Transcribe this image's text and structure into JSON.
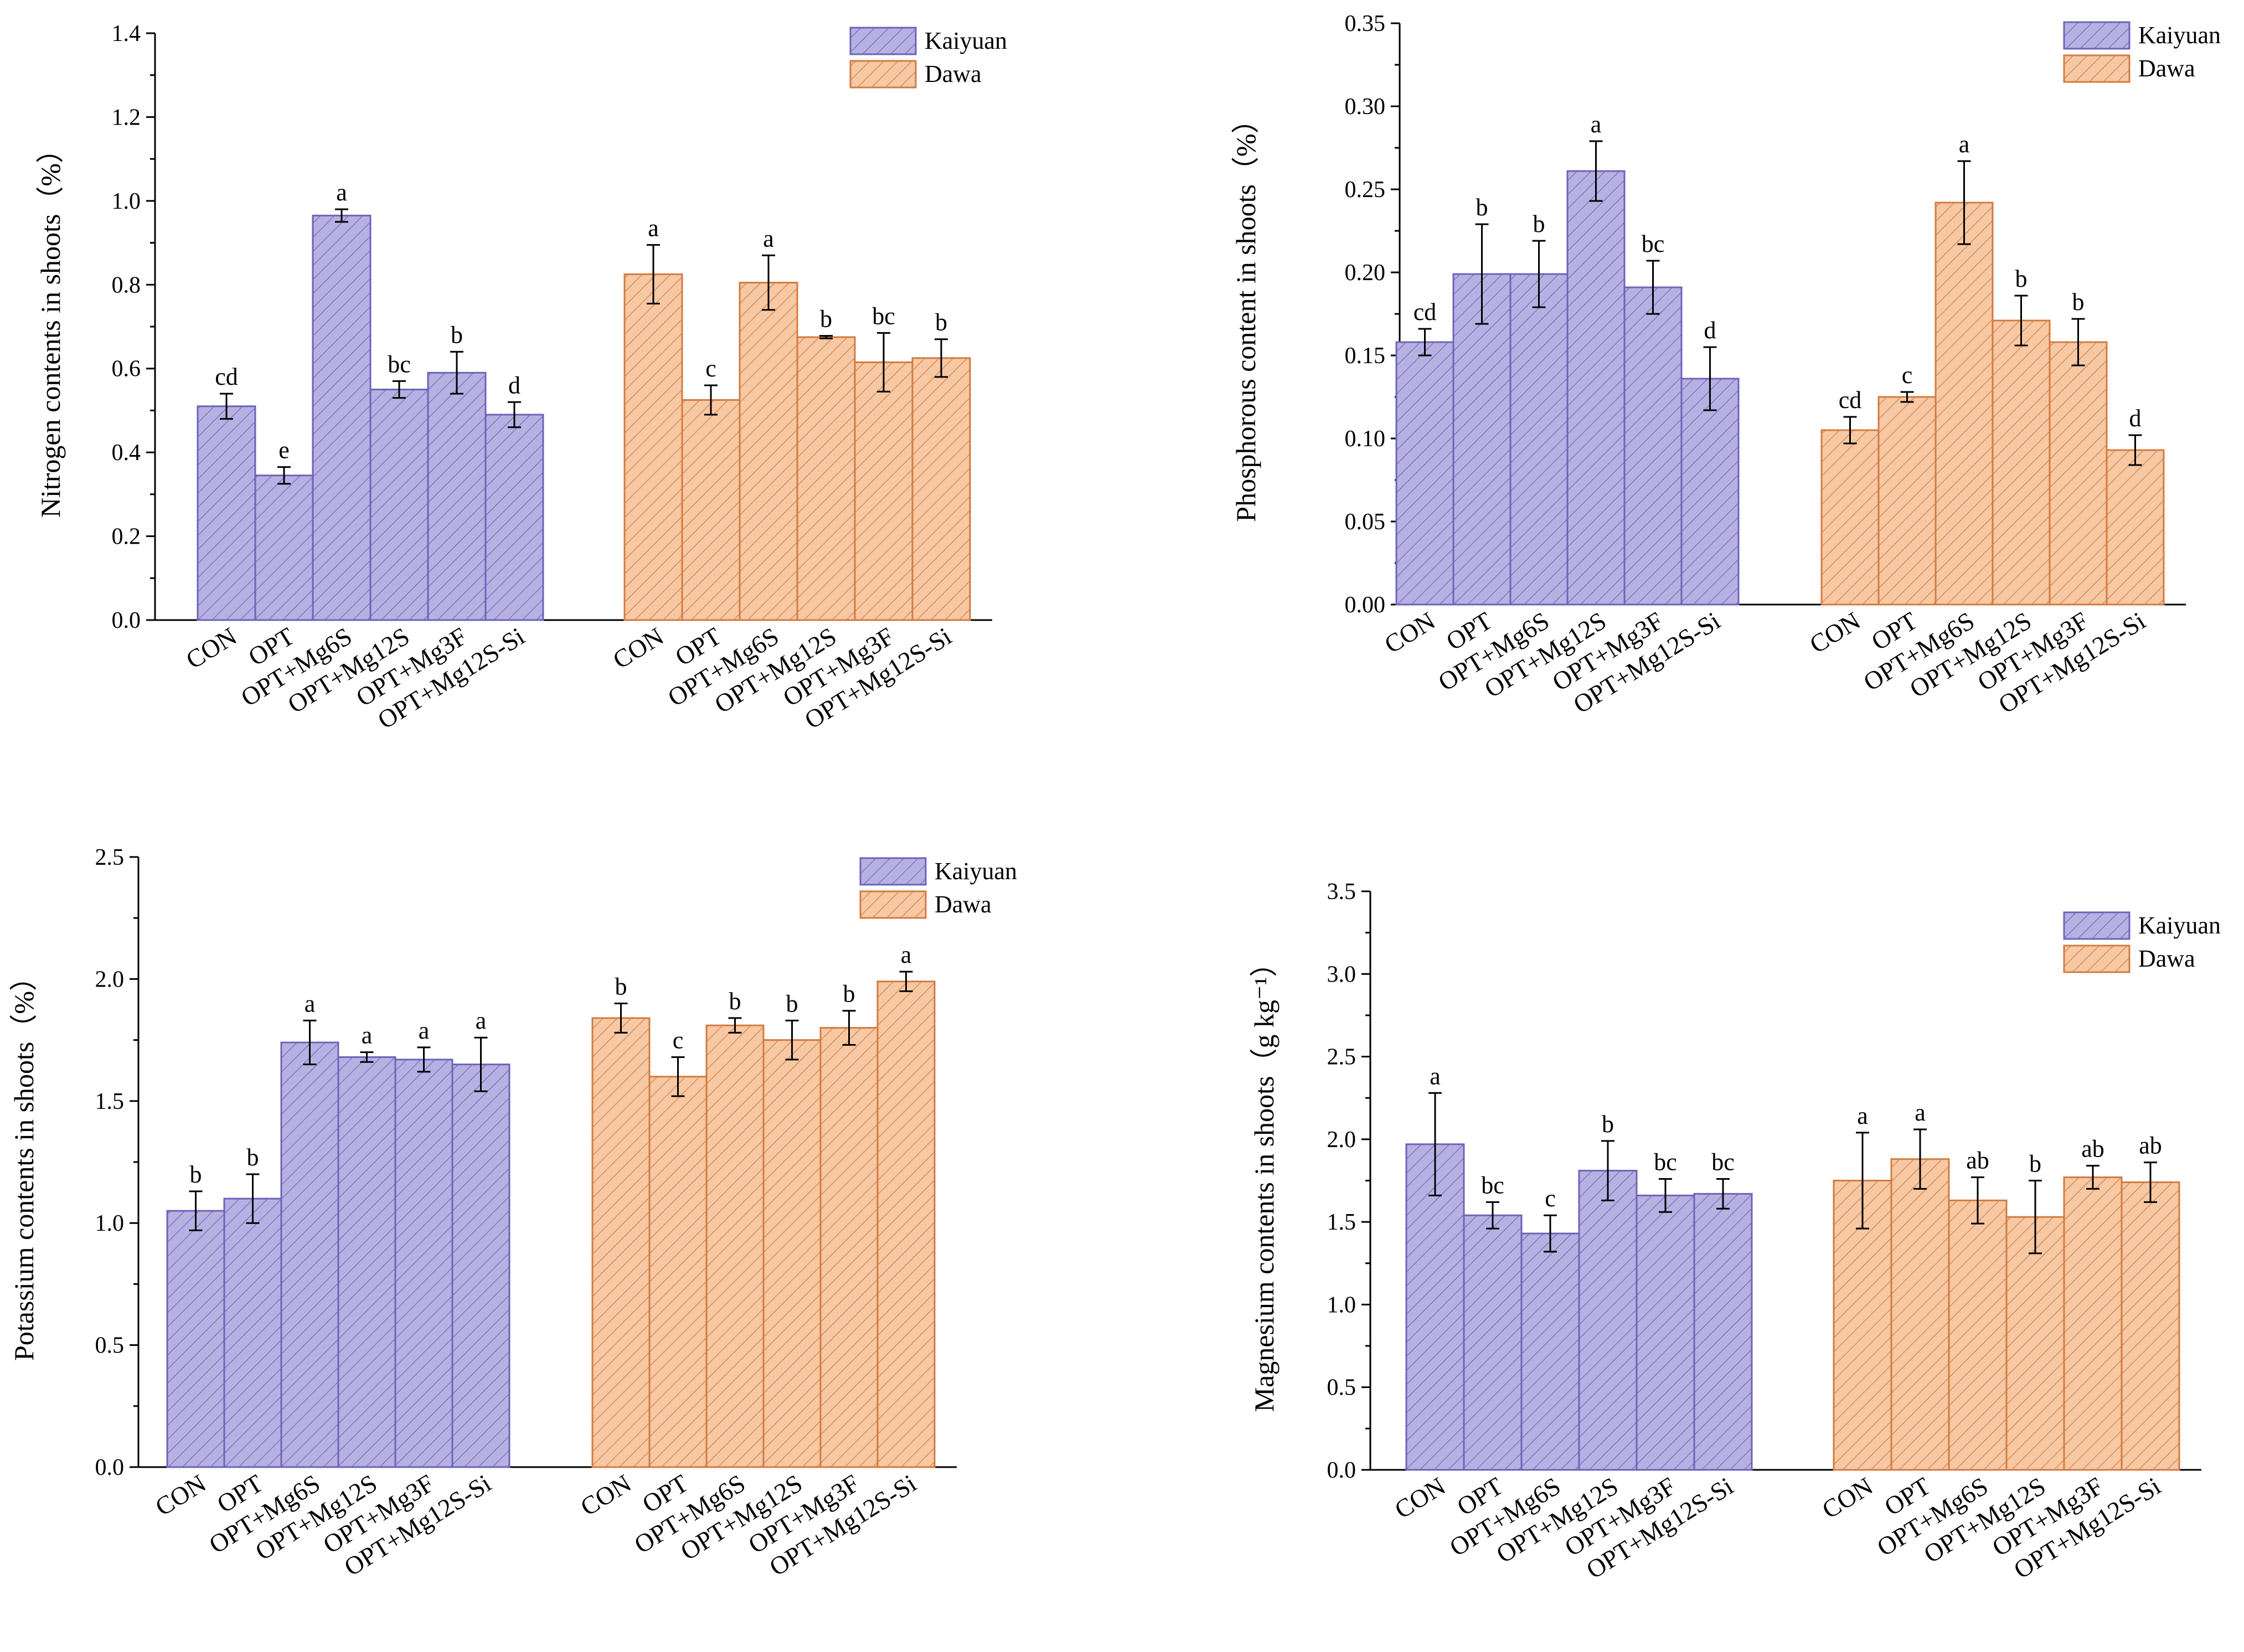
{
  "chart_data": [
    {
      "type": "bar",
      "title": "",
      "xlabel": "",
      "ylabel": "Nitrogen contents in shoots（%）",
      "ylim": [
        0,
        1.4
      ],
      "yticks": [
        "0.0",
        "0.2",
        "0.4",
        "0.6",
        "0.8",
        "1.0",
        "1.2",
        "1.4"
      ],
      "ytick_values": [
        0,
        0.2,
        0.4,
        0.6,
        0.8,
        1.0,
        1.2,
        1.4
      ],
      "grid": false,
      "legend_position": "top-right",
      "categories": [
        "CON",
        "OPT",
        "OPT+Mg6S",
        "OPT+Mg12S",
        "OPT+Mg3F",
        "OPT+Mg12S-Si"
      ],
      "series": [
        {
          "name": "Kaiyuan",
          "color": "#b7b1e2",
          "edge_color": "#6d63b8",
          "values": [
            0.51,
            0.345,
            0.965,
            0.55,
            0.59,
            0.49
          ],
          "errors": [
            0.03,
            0.02,
            0.015,
            0.02,
            0.05,
            0.03
          ],
          "letters": [
            "cd",
            "e",
            "a",
            "bc",
            "b",
            "d"
          ]
        },
        {
          "name": "Dawa",
          "color": "#f6c8a4",
          "edge_color": "#d27b40",
          "values": [
            0.825,
            0.525,
            0.805,
            0.675,
            0.615,
            0.625
          ],
          "errors": [
            0.07,
            0.035,
            0.065,
            0.003,
            0.07,
            0.045
          ],
          "letters": [
            "a",
            "c",
            "a",
            "b",
            "bc",
            "b"
          ]
        }
      ]
    },
    {
      "type": "bar",
      "title": "",
      "xlabel": "",
      "ylabel": "Phosphorous content in shoots（%）",
      "ylim": [
        0,
        0.35
      ],
      "yticks": [
        "0.00",
        "0.05",
        "0.10",
        "0.15",
        "0.20",
        "0.25",
        "0.30",
        "0.35"
      ],
      "ytick_values": [
        0,
        0.05,
        0.1,
        0.15,
        0.2,
        0.25,
        0.3,
        0.35
      ],
      "grid": false,
      "legend_position": "top-right",
      "categories": [
        "CON",
        "OPT",
        "OPT+Mg6S",
        "OPT+Mg12S",
        "OPT+Mg3F",
        "OPT+Mg12S-Si"
      ],
      "series": [
        {
          "name": "Kaiyuan",
          "color": "#b7b1e2",
          "edge_color": "#6d63b8",
          "values": [
            0.158,
            0.199,
            0.199,
            0.261,
            0.191,
            0.136
          ],
          "errors": [
            0.008,
            0.03,
            0.02,
            0.018,
            0.016,
            0.019
          ],
          "letters": [
            "cd",
            "b",
            "b",
            "a",
            "bc",
            "d"
          ]
        },
        {
          "name": "Dawa",
          "color": "#f6c8a4",
          "edge_color": "#d27b40",
          "values": [
            0.105,
            0.125,
            0.242,
            0.171,
            0.158,
            0.093
          ],
          "errors": [
            0.008,
            0.003,
            0.025,
            0.015,
            0.014,
            0.009
          ],
          "letters": [
            "cd",
            "c",
            "a",
            "b",
            "b",
            "d"
          ]
        }
      ]
    },
    {
      "type": "bar",
      "title": "",
      "xlabel": "",
      "ylabel": "Potassium contents in shoots（%）",
      "ylim": [
        0,
        2.5
      ],
      "yticks": [
        "0.0",
        "0.5",
        "1.0",
        "1.5",
        "2.0",
        "2.5"
      ],
      "ytick_values": [
        0,
        0.5,
        1.0,
        1.5,
        2.0,
        2.5
      ],
      "grid": false,
      "legend_position": "top-right",
      "categories": [
        "CON",
        "OPT",
        "OPT+Mg6S",
        "OPT+Mg12S",
        "OPT+Mg3F",
        "OPT+Mg12S-Si"
      ],
      "series": [
        {
          "name": "Kaiyuan",
          "color": "#b7b1e2",
          "edge_color": "#6d63b8",
          "values": [
            1.05,
            1.1,
            1.74,
            1.68,
            1.67,
            1.65
          ],
          "errors": [
            0.08,
            0.1,
            0.09,
            0.02,
            0.05,
            0.11
          ],
          "letters": [
            "b",
            "b",
            "a",
            "a",
            "a",
            "a"
          ]
        },
        {
          "name": "Dawa",
          "color": "#f6c8a4",
          "edge_color": "#d27b40",
          "values": [
            1.84,
            1.6,
            1.81,
            1.75,
            1.8,
            1.99
          ],
          "errors": [
            0.06,
            0.08,
            0.03,
            0.08,
            0.07,
            0.04
          ],
          "letters": [
            "b",
            "c",
            "b",
            "b",
            "b",
            "a"
          ]
        }
      ]
    },
    {
      "type": "bar",
      "title": "",
      "xlabel": "",
      "ylabel": "Magnesium contents in shoots（g kg⁻¹）",
      "ylim": [
        0,
        3.5
      ],
      "yticks": [
        "0.0",
        "0.5",
        "1.0",
        "1.5",
        "2.0",
        "2.5",
        "3.0",
        "3.5"
      ],
      "ytick_values": [
        0,
        0.5,
        1.0,
        1.5,
        2.0,
        2.5,
        3.0,
        3.5
      ],
      "grid": false,
      "legend_position": "top-right",
      "categories": [
        "CON",
        "OPT",
        "OPT+Mg6S",
        "OPT+Mg12S",
        "OPT+Mg3F",
        "OPT+Mg12S-Si"
      ],
      "series": [
        {
          "name": "Kaiyuan",
          "color": "#b7b1e2",
          "edge_color": "#6d63b8",
          "values": [
            1.97,
            1.54,
            1.43,
            1.81,
            1.66,
            1.67
          ],
          "errors": [
            0.31,
            0.08,
            0.11,
            0.18,
            0.1,
            0.09
          ],
          "letters": [
            "a",
            "bc",
            "c",
            "b",
            "bc",
            "bc"
          ]
        },
        {
          "name": "Dawa",
          "color": "#f6c8a4",
          "edge_color": "#d27b40",
          "values": [
            1.75,
            1.88,
            1.63,
            1.53,
            1.77,
            1.74
          ],
          "errors": [
            0.29,
            0.18,
            0.14,
            0.22,
            0.07,
            0.12
          ],
          "letters": [
            "a",
            "a",
            "ab",
            "b",
            "ab",
            "ab"
          ]
        }
      ]
    }
  ]
}
